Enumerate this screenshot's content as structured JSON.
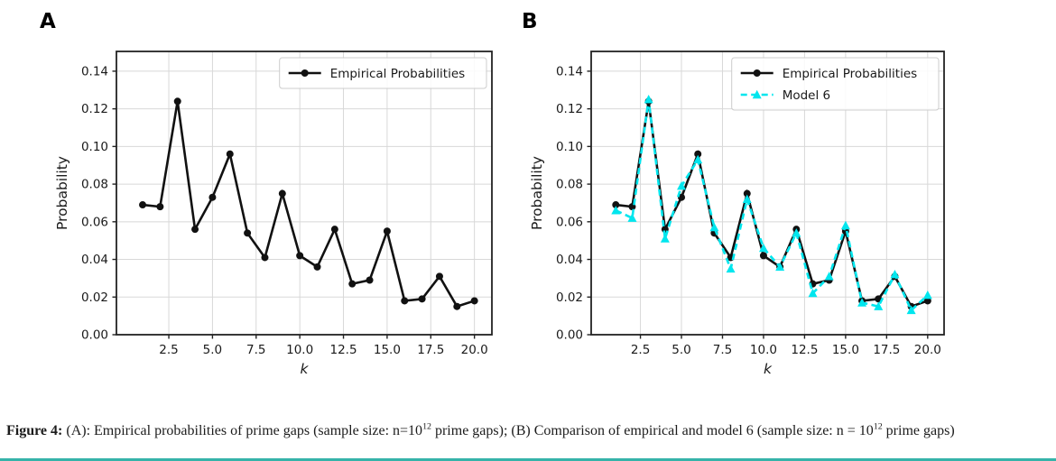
{
  "page": {
    "background": "#ffffff",
    "accent_bar_color": "#35b3a9"
  },
  "caption": {
    "label": "Figure 4:",
    "seg1": " (A): Empirical probabilities of prime gaps (sample size: n=10",
    "sup1": "12",
    "seg2": " prime gaps); (B) Comparison of empirical and model 6 (sample size: n = 10",
    "sup2": "12",
    "seg3": " prime gaps)"
  },
  "chart_data": [
    {
      "type": "line",
      "panel_label": "A",
      "title": "",
      "xlabel": "k",
      "ylabel": "Probability",
      "xlim": [
        -0.5,
        21.0
      ],
      "ylim": [
        0,
        0.1505
      ],
      "grid": true,
      "grid_color": "#d8d8d8",
      "legend_position": "upper right",
      "xticks": [
        2.5,
        5.0,
        7.5,
        10.0,
        12.5,
        15.0,
        17.5,
        20.0
      ],
      "xtick_labels": [
        "2.5",
        "5.0",
        "7.5",
        "10.0",
        "12.5",
        "15.0",
        "17.5",
        "20.0"
      ],
      "yticks": [
        0.0,
        0.02,
        0.04,
        0.06,
        0.08,
        0.1,
        0.12,
        0.14
      ],
      "ytick_labels": [
        "0.00",
        "0.02",
        "0.04",
        "0.06",
        "0.08",
        "0.10",
        "0.12",
        "0.14"
      ],
      "x": [
        1,
        2,
        3,
        4,
        5,
        6,
        7,
        8,
        9,
        10,
        11,
        12,
        13,
        14,
        15,
        16,
        17,
        18,
        19,
        20
      ],
      "series": [
        {
          "name": "Empirical Probabilities",
          "color": "#111111",
          "style": "solid",
          "dash": "",
          "marker": "circle",
          "values": [
            0.069,
            0.068,
            0.124,
            0.056,
            0.073,
            0.096,
            0.054,
            0.041,
            0.075,
            0.042,
            0.036,
            0.056,
            0.027,
            0.029,
            0.055,
            0.018,
            0.019,
            0.031,
            0.015,
            0.018
          ]
        }
      ]
    },
    {
      "type": "line",
      "panel_label": "B",
      "title": "",
      "xlabel": "k",
      "ylabel": "Probability",
      "xlim": [
        -0.5,
        21.0
      ],
      "ylim": [
        0,
        0.1505
      ],
      "grid": true,
      "grid_color": "#d8d8d8",
      "legend_position": "upper right",
      "xticks": [
        2.5,
        5.0,
        7.5,
        10.0,
        12.5,
        15.0,
        17.5,
        20.0
      ],
      "xtick_labels": [
        "2.5",
        "5.0",
        "7.5",
        "10.0",
        "12.5",
        "15.0",
        "17.5",
        "20.0"
      ],
      "yticks": [
        0.0,
        0.02,
        0.04,
        0.06,
        0.08,
        0.1,
        0.12,
        0.14
      ],
      "ytick_labels": [
        "0.00",
        "0.02",
        "0.04",
        "0.06",
        "0.08",
        "0.10",
        "0.12",
        "0.14"
      ],
      "x": [
        1,
        2,
        3,
        4,
        5,
        6,
        7,
        8,
        9,
        10,
        11,
        12,
        13,
        14,
        15,
        16,
        17,
        18,
        19,
        20
      ],
      "series": [
        {
          "name": "Empirical Probabilities",
          "color": "#111111",
          "style": "solid",
          "dash": "",
          "marker": "circle",
          "values": [
            0.069,
            0.068,
            0.124,
            0.056,
            0.073,
            0.096,
            0.054,
            0.041,
            0.075,
            0.042,
            0.036,
            0.056,
            0.027,
            0.029,
            0.055,
            0.018,
            0.019,
            0.031,
            0.015,
            0.018
          ]
        },
        {
          "name": "Model 6",
          "color": "#00e6ee",
          "style": "dashed",
          "dash": "7 4.5",
          "marker": "triangle",
          "values": [
            0.066,
            0.062,
            0.125,
            0.051,
            0.079,
            0.093,
            0.057,
            0.035,
            0.072,
            0.046,
            0.036,
            0.054,
            0.022,
            0.031,
            0.058,
            0.017,
            0.015,
            0.032,
            0.013,
            0.021
          ]
        }
      ]
    }
  ]
}
